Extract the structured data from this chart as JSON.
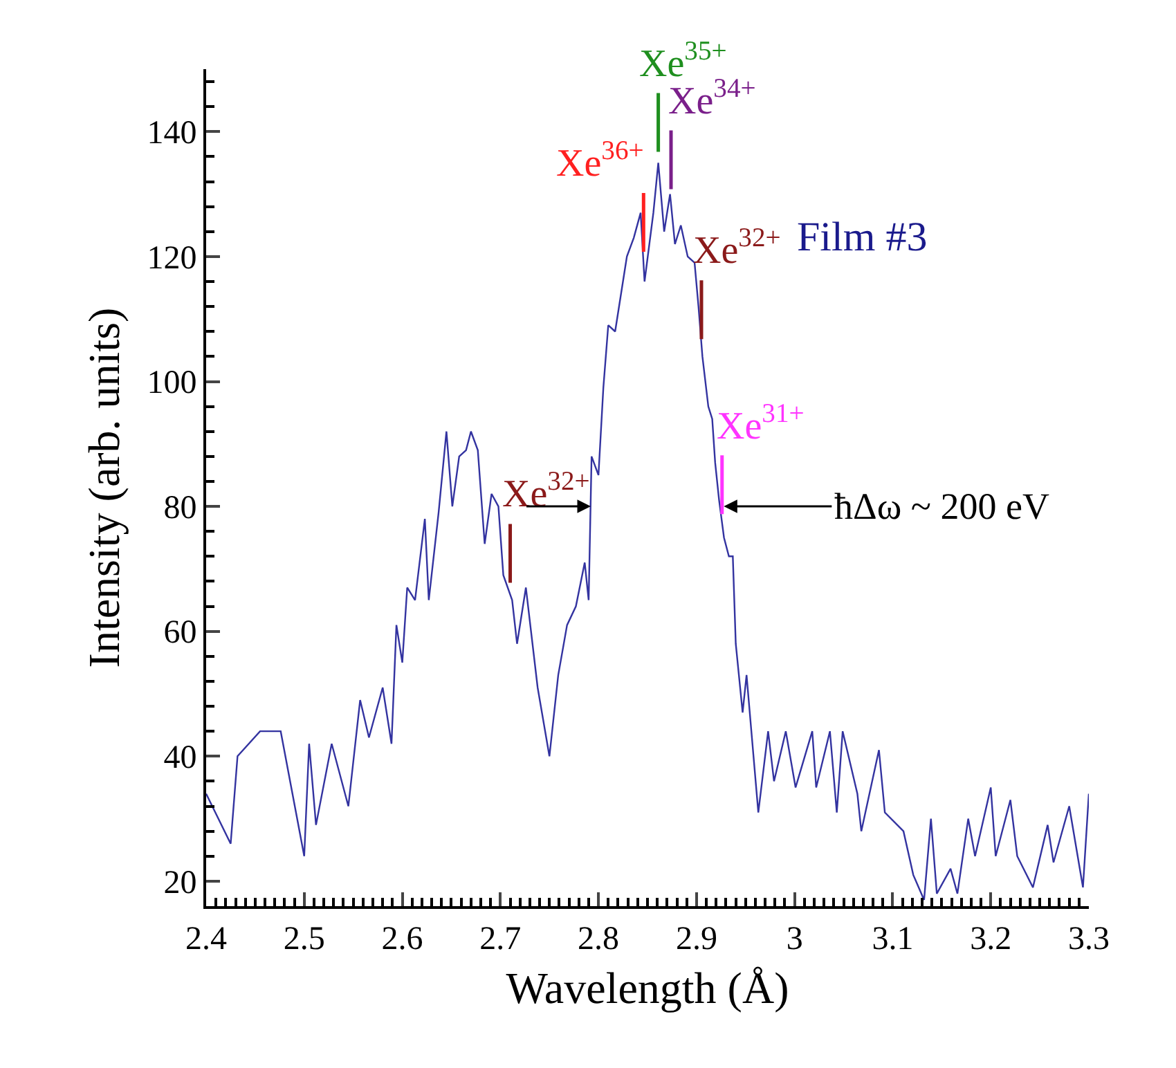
{
  "chart_data": {
    "type": "line",
    "title": "Film #3",
    "xlabel": "Wavelength (Å)",
    "ylabel": "Intensity (arb. units)",
    "x": [
      2.4,
      2.425,
      2.432,
      2.455,
      2.476,
      2.5,
      2.505,
      2.512,
      2.528,
      2.545,
      2.557,
      2.566,
      2.58,
      2.589,
      2.594,
      2.6,
      2.605,
      2.613,
      2.623,
      2.627,
      2.637,
      2.645,
      2.651,
      2.658,
      2.665,
      2.67,
      2.677,
      2.684,
      2.691,
      2.698,
      2.703,
      2.712,
      2.717,
      2.726,
      2.738,
      2.75,
      2.759,
      2.768,
      2.777,
      2.786,
      2.79,
      2.793,
      2.8,
      2.805,
      2.81,
      2.817,
      2.829,
      2.836,
      2.843,
      2.847,
      2.856,
      2.861,
      2.867,
      2.873,
      2.878,
      2.884,
      2.891,
      2.898,
      2.902,
      2.906,
      2.912,
      2.916,
      2.919,
      2.923,
      2.928,
      2.933,
      2.937,
      2.94,
      2.947,
      2.951,
      2.963,
      2.973,
      2.979,
      2.991,
      3.001,
      3.018,
      3.022,
      3.036,
      3.043,
      3.049,
      3.064,
      3.068,
      3.086,
      3.092,
      3.111,
      3.121,
      3.132,
      3.139,
      3.145,
      3.159,
      3.166,
      3.177,
      3.184,
      3.2,
      3.205,
      3.22,
      3.227,
      3.243,
      3.258,
      3.264,
      3.28,
      3.294,
      3.3
    ],
    "series": [
      {
        "color": "#3333a0",
        "values": [
          34,
          26,
          40,
          44,
          44,
          24,
          42,
          29,
          42,
          32,
          49,
          43,
          51,
          42,
          61,
          55,
          67,
          65,
          78,
          65,
          79,
          92,
          80,
          88,
          89,
          92,
          89,
          74,
          82,
          80,
          69,
          65,
          58,
          67,
          51,
          40,
          53,
          61,
          64,
          71,
          65,
          88,
          85,
          99,
          109,
          108,
          120,
          123,
          127,
          116,
          127,
          135,
          124,
          130,
          122,
          125,
          120,
          119,
          112,
          104,
          96,
          94,
          87,
          81,
          75,
          72,
          72,
          58,
          47,
          53,
          31,
          44,
          36,
          44,
          35,
          44,
          35,
          44,
          31,
          44,
          34,
          28,
          41,
          31,
          28,
          21,
          17,
          30,
          18,
          22,
          18,
          30,
          24,
          35,
          24,
          33,
          24,
          19,
          29,
          23,
          32,
          19,
          34
        ]
      }
    ],
    "xlim": [
      2.4,
      3.3
    ],
    "xticks": [
      2.4,
      2.5,
      2.6,
      2.7,
      2.8,
      2.9,
      3.0,
      3.1,
      3.2,
      3.3
    ],
    "ylim": [
      16,
      150
    ],
    "yticks": [
      20,
      40,
      60,
      80,
      100,
      120,
      140
    ],
    "marker": "none",
    "line_style": "solid",
    "annotations": [
      {
        "text": "Xe$^{36+}$",
        "x": 2.846,
        "y": 119
      },
      {
        "text": "Xe$^{35+}$",
        "x": 2.861,
        "y": 135
      },
      {
        "text": "Xe$^{34+}$",
        "x": 2.874,
        "y": 129
      },
      {
        "text": "Xe$^{32+}$",
        "x": 2.905,
        "y": 105
      },
      {
        "text": "Xe$^{31+}$",
        "x": 2.926,
        "y": 77
      },
      {
        "text": "Xe$^{32+}$",
        "x": 2.71,
        "y": 66
      },
      {
        "text": "ħΔω ~ 200 eV",
        "x": 2.925,
        "y": 80
      }
    ]
  }
}
